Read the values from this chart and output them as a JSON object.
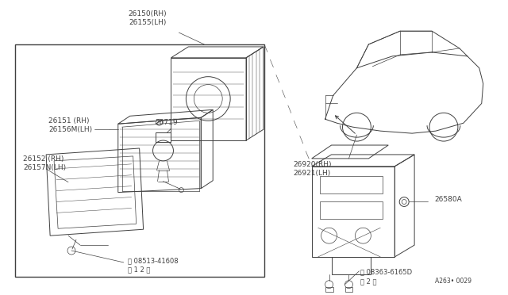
{
  "bg_color": "#ffffff",
  "line_color": "#404040",
  "label_color": "#404040",
  "diagram_code": "A263• 0029",
  "fs": 6.5,
  "fs_small": 5.5,
  "parts": {
    "top_label": "26150(RH)\n26155(LH)",
    "label_26151": "26151 （RH）\n26156M（LH）",
    "label_26152": "26152 （RH）\n26157N（LH）",
    "label_26719": "26719",
    "label_screw1": "© 08513-41608\n（ 1 2 ）",
    "label_26920": "26920（RH）\n26921（LH）",
    "label_26580A": "26580A",
    "label_screw2": "© 08363-6165D\n（ 2 ）"
  }
}
